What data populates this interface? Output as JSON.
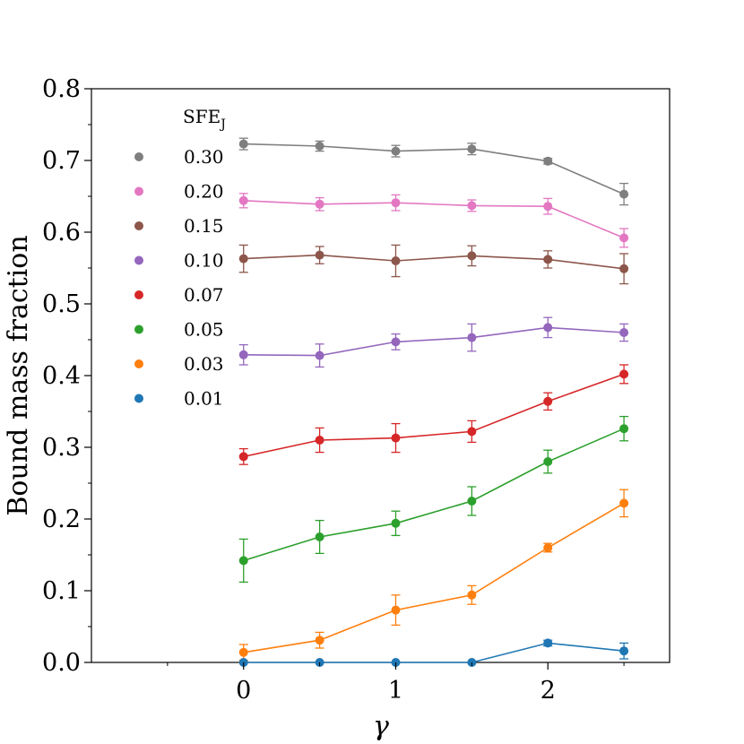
{
  "chart_data": {
    "type": "line",
    "xlabel": "γ",
    "ylabel": "Bound mass fraction",
    "xlim": [
      -1,
      2.8
    ],
    "ylim": [
      0,
      0.8
    ],
    "x_ticks": [
      0,
      1,
      2
    ],
    "x_tick_labels": [
      "0",
      "1",
      "2"
    ],
    "x_minor_ticks": [
      -0.5,
      0.5,
      1.5,
      2.5
    ],
    "y_ticks": [
      0.0,
      0.1,
      0.2,
      0.3,
      0.4,
      0.5,
      0.6,
      0.7,
      0.8
    ],
    "y_tick_labels": [
      "0.0",
      "0.1",
      "0.2",
      "0.3",
      "0.4",
      "0.5",
      "0.6",
      "0.7",
      "0.8"
    ],
    "grid": false,
    "legend": {
      "title_main": "SFE",
      "title_sub": "J",
      "placement": "top-left"
    },
    "x": [
      0,
      0.5,
      1,
      1.5,
      2,
      2.5
    ],
    "series": [
      {
        "name": "0.30",
        "color": "#7f7f7f",
        "x": [
          0,
          0.5,
          1,
          1.5,
          2,
          2.5
        ],
        "values": [
          0.723,
          0.72,
          0.713,
          0.716,
          0.699,
          0.653
        ],
        "errors": [
          0.008,
          0.007,
          0.008,
          0.008,
          0.004,
          0.015
        ]
      },
      {
        "name": "0.20",
        "color": "#e377c2",
        "x": [
          0,
          0.5,
          1,
          1.5,
          2,
          2.5
        ],
        "values": [
          0.644,
          0.639,
          0.641,
          0.637,
          0.636,
          0.592
        ],
        "errors": [
          0.01,
          0.009,
          0.011,
          0.008,
          0.011,
          0.013
        ]
      },
      {
        "name": "0.15",
        "color": "#8c564b",
        "x": [
          0,
          0.5,
          1,
          1.5,
          2,
          2.5
        ],
        "values": [
          0.563,
          0.568,
          0.56,
          0.567,
          0.562,
          0.549
        ],
        "errors": [
          0.019,
          0.012,
          0.022,
          0.014,
          0.012,
          0.021
        ]
      },
      {
        "name": "0.10",
        "color": "#9467bd",
        "x": [
          0,
          0.5,
          1,
          1.5,
          2,
          2.5
        ],
        "values": [
          0.429,
          0.428,
          0.447,
          0.453,
          0.467,
          0.46
        ],
        "errors": [
          0.014,
          0.016,
          0.011,
          0.019,
          0.014,
          0.012
        ]
      },
      {
        "name": "0.07",
        "color": "#d62728",
        "x": [
          0,
          0.5,
          1,
          1.5,
          2,
          2.5
        ],
        "values": [
          0.287,
          0.31,
          0.313,
          0.322,
          0.364,
          0.402
        ],
        "errors": [
          0.011,
          0.017,
          0.02,
          0.015,
          0.012,
          0.013
        ]
      },
      {
        "name": "0.05",
        "color": "#2ca02c",
        "x": [
          0,
          0.5,
          1,
          1.5,
          2,
          2.5
        ],
        "values": [
          0.142,
          0.175,
          0.194,
          0.225,
          0.28,
          0.326
        ],
        "errors": [
          0.03,
          0.023,
          0.017,
          0.02,
          0.016,
          0.017
        ]
      },
      {
        "name": "0.03",
        "color": "#ff7f0e",
        "x": [
          0,
          0.5,
          1,
          1.5,
          2,
          2.5
        ],
        "values": [
          0.014,
          0.031,
          0.073,
          0.094,
          0.16,
          0.222
        ],
        "errors": [
          0.011,
          0.011,
          0.021,
          0.013,
          0.006,
          0.019
        ]
      },
      {
        "name": "0.01",
        "color": "#1f77b4",
        "x": [
          0,
          0.5,
          1,
          1.5,
          2,
          2.5
        ],
        "values": [
          0.0,
          0.0,
          0.0,
          0.0,
          0.027,
          0.016
        ],
        "errors": [
          0.0,
          0.0,
          0.0,
          0.0,
          0.004,
          0.011
        ]
      }
    ]
  }
}
